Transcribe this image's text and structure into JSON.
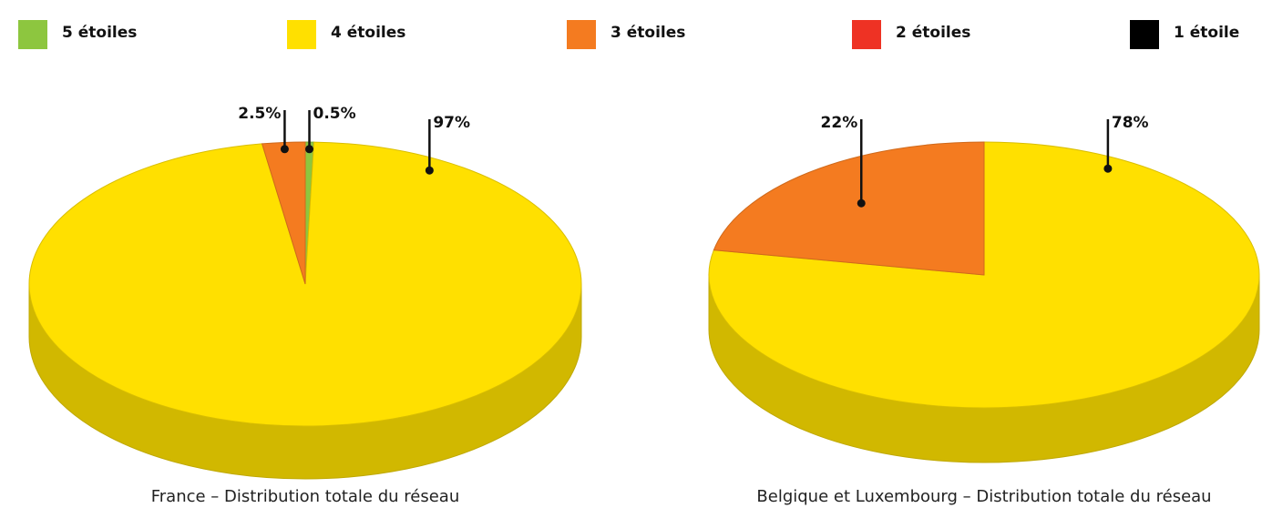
{
  "legend": {
    "names": [
      "5 étoiles",
      "4 étoiles",
      "3 étoiles",
      "2 étoiles",
      "1 étoile"
    ],
    "colors": [
      "#8dc63f",
      "#ffe000",
      "#f47b20",
      "#ee3224",
      "#000000"
    ]
  },
  "chart_data": [
    {
      "type": "pie",
      "title": "France – Distribution totale du réseau",
      "values": [
        0.5,
        97,
        2.5,
        0,
        0
      ],
      "value_labels": [
        "0.5%",
        "97%",
        "2.5%",
        null,
        null
      ]
    },
    {
      "type": "pie",
      "title": "Belgique et Luxembourg – Distribution totale du réseau",
      "values": [
        0,
        78,
        22,
        0,
        0
      ],
      "value_labels": [
        null,
        "78%",
        "22%",
        null,
        null
      ]
    }
  ]
}
